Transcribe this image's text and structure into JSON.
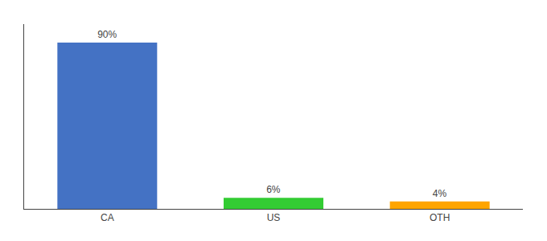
{
  "chart_data": {
    "type": "bar",
    "categories": [
      "CA",
      "US",
      "OTH"
    ],
    "values": [
      90,
      6,
      4
    ],
    "value_labels": [
      "90%",
      "6%",
      "4%"
    ],
    "data_labels": true,
    "colors": [
      "#4472c4",
      "#33cc33",
      "#ffa500"
    ],
    "ylim": [
      0,
      100
    ],
    "grid": false,
    "tick_labels": "x"
  }
}
